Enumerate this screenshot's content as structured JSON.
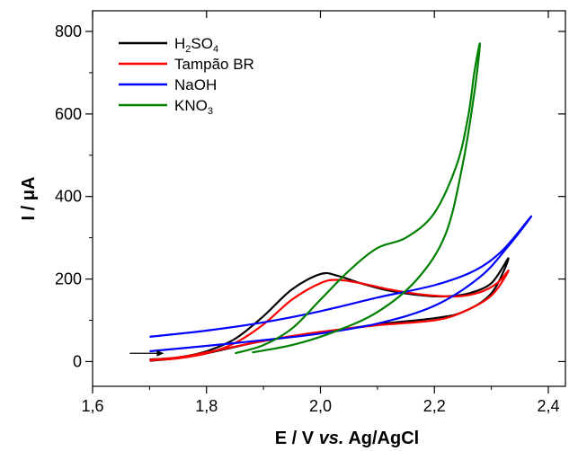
{
  "chart_data": {
    "type": "line",
    "xlabel_parts": [
      "E / V ",
      "vs.",
      " Ag/AgCl"
    ],
    "ylabel_parts": [
      "I / ",
      "μ",
      "A"
    ],
    "xlim": [
      1.6,
      2.43
    ],
    "ylim": [
      -60,
      850
    ],
    "x_ticks": [
      1.6,
      1.8,
      2.0,
      2.2,
      2.4
    ],
    "x_tick_labels": [
      "1,6",
      "1,8",
      "2,0",
      "2,2",
      "2,4"
    ],
    "y_ticks": [
      0,
      200,
      400,
      600,
      800
    ],
    "y_tick_labels": [
      "0",
      "200",
      "400",
      "600",
      "800"
    ],
    "grid": false,
    "legend_position": "top-left",
    "series": [
      {
        "name_parts": [
          [
            "H",
            "n"
          ],
          [
            "2",
            "sub"
          ],
          [
            "SO",
            "n"
          ],
          [
            "4",
            "sub"
          ]
        ],
        "color": "#000000",
        "points": [
          [
            1.7,
            5
          ],
          [
            1.75,
            10
          ],
          [
            1.8,
            25
          ],
          [
            1.85,
            55
          ],
          [
            1.9,
            110
          ],
          [
            1.95,
            175
          ],
          [
            2.0,
            212
          ],
          [
            2.03,
            208
          ],
          [
            2.07,
            190
          ],
          [
            2.12,
            172
          ],
          [
            2.18,
            160
          ],
          [
            2.22,
            158
          ],
          [
            2.26,
            165
          ],
          [
            2.3,
            190
          ],
          [
            2.33,
            250
          ],
          [
            2.3,
            165
          ],
          [
            2.25,
            120
          ],
          [
            2.2,
            105
          ],
          [
            2.1,
            90
          ],
          [
            2.0,
            70
          ],
          [
            1.9,
            50
          ],
          [
            1.8,
            20
          ],
          [
            1.75,
            8
          ],
          [
            1.7,
            2
          ]
        ]
      },
      {
        "name_parts": [
          [
            "Tampão BR",
            "n"
          ]
        ],
        "color": "#ff0000",
        "points": [
          [
            1.7,
            3
          ],
          [
            1.75,
            8
          ],
          [
            1.8,
            20
          ],
          [
            1.85,
            45
          ],
          [
            1.9,
            90
          ],
          [
            1.95,
            150
          ],
          [
            2.0,
            190
          ],
          [
            2.03,
            198
          ],
          [
            2.07,
            190
          ],
          [
            2.12,
            175
          ],
          [
            2.18,
            162
          ],
          [
            2.24,
            158
          ],
          [
            2.28,
            168
          ],
          [
            2.31,
            190
          ],
          [
            2.33,
            220
          ],
          [
            2.3,
            160
          ],
          [
            2.25,
            120
          ],
          [
            2.2,
            100
          ],
          [
            2.1,
            88
          ],
          [
            2.0,
            72
          ],
          [
            1.9,
            50
          ],
          [
            1.8,
            22
          ],
          [
            1.75,
            10
          ],
          [
            1.7,
            4
          ]
        ]
      },
      {
        "name_parts": [
          [
            "NaOH",
            "n"
          ]
        ],
        "color": "#0000ff",
        "points": [
          [
            1.7,
            60
          ],
          [
            1.8,
            75
          ],
          [
            1.9,
            95
          ],
          [
            2.0,
            122
          ],
          [
            2.1,
            155
          ],
          [
            2.2,
            185
          ],
          [
            2.27,
            220
          ],
          [
            2.32,
            270
          ],
          [
            2.37,
            352
          ],
          [
            2.33,
            280
          ],
          [
            2.28,
            205
          ],
          [
            2.2,
            135
          ],
          [
            2.1,
            92
          ],
          [
            2.0,
            68
          ],
          [
            1.9,
            52
          ],
          [
            1.8,
            38
          ],
          [
            1.7,
            25
          ]
        ]
      },
      {
        "name_parts": [
          [
            "KNO",
            "n"
          ],
          [
            "3",
            "sub"
          ]
        ],
        "color": "#008000",
        "points": [
          [
            1.85,
            20
          ],
          [
            1.9,
            40
          ],
          [
            1.95,
            80
          ],
          [
            2.0,
            150
          ],
          [
            2.05,
            220
          ],
          [
            2.1,
            275
          ],
          [
            2.15,
            300
          ],
          [
            2.2,
            360
          ],
          [
            2.24,
            480
          ],
          [
            2.26,
            600
          ],
          [
            2.27,
            700
          ],
          [
            2.28,
            770
          ],
          [
            2.27,
            650
          ],
          [
            2.25,
            480
          ],
          [
            2.22,
            310
          ],
          [
            2.17,
            200
          ],
          [
            2.1,
            120
          ],
          [
            2.02,
            70
          ],
          [
            1.95,
            40
          ],
          [
            1.88,
            22
          ]
        ]
      }
    ],
    "annotation_arrow": {
      "x_from": 1.7,
      "x_to": 1.78,
      "y": 20
    }
  }
}
